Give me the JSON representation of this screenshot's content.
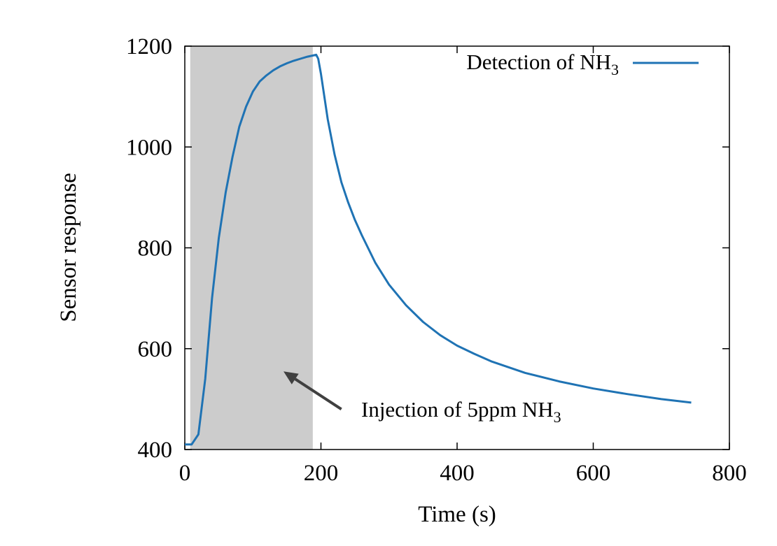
{
  "chart_data": {
    "type": "line",
    "xlabel": "Time (s)",
    "ylabel": "Sensor response",
    "xlim": [
      0,
      800
    ],
    "ylim": [
      400,
      1200
    ],
    "xticks": [
      "0",
      "200",
      "400",
      "600",
      "800"
    ],
    "yticks": [
      "400",
      "600",
      "800",
      "1000",
      "1200"
    ],
    "grid": false,
    "legend_position": "top-right",
    "series": [
      {
        "name_main": "Detection of NH",
        "name_sub": "3",
        "color": "#1f73b4",
        "x": [
          0,
          5,
          10,
          20,
          30,
          40,
          50,
          60,
          70,
          80,
          90,
          100,
          110,
          120,
          130,
          140,
          150,
          160,
          170,
          180,
          190,
          193,
          196,
          200,
          210,
          220,
          230,
          240,
          250,
          260,
          280,
          300,
          325,
          350,
          375,
          400,
          425,
          450,
          500,
          550,
          600,
          650,
          700,
          744
        ],
        "y": [
          410,
          410,
          410,
          430,
          540,
          700,
          820,
          910,
          980,
          1040,
          1080,
          1110,
          1130,
          1142,
          1152,
          1160,
          1166,
          1171,
          1175,
          1179,
          1182,
          1183,
          1175,
          1145,
          1055,
          985,
          930,
          890,
          855,
          825,
          770,
          727,
          686,
          653,
          627,
          606,
          590,
          575,
          552,
          535,
          521,
          510,
          500,
          493
        ]
      }
    ],
    "shaded_region": {
      "x_start": 8,
      "x_end": 188,
      "color": "#cccccc"
    },
    "annotation": {
      "text_main": "Injection of 5ppm NH",
      "text_sub": "3",
      "arrow_from": {
        "x": 230,
        "y": 480
      },
      "arrow_to": {
        "x": 145,
        "y": 555
      }
    }
  }
}
